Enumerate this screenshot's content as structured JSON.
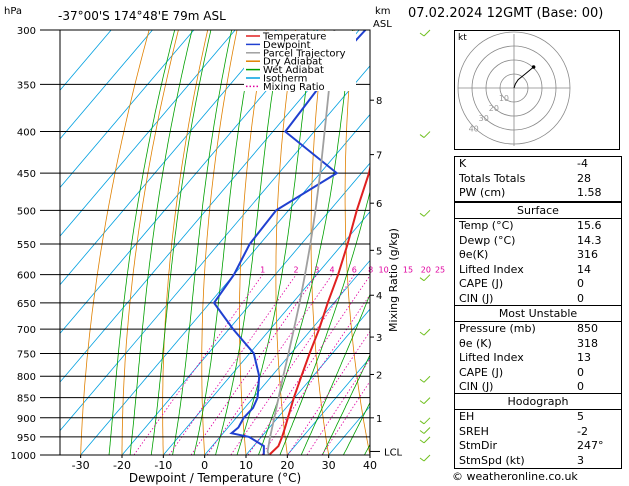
{
  "header": {
    "pressure_unit": "hPa",
    "location": "-37°00'S 174°48'E 79m ASL",
    "height_unit_km": "km",
    "height_unit_asl": "ASL",
    "date": "07.02.2024 12GMT (Base: 00)"
  },
  "chart_data": {
    "type": "line",
    "xlabel": "Dewpoint / Temperature (°C)",
    "ylabel_right": "Mixing Ratio (g/kg)",
    "y_axis_label": "hPa",
    "pressure_ticks": [
      300,
      350,
      400,
      450,
      500,
      550,
      600,
      650,
      700,
      750,
      800,
      850,
      900,
      950,
      1000
    ],
    "temp_ticks": [
      -30,
      -20,
      -10,
      0,
      10,
      20,
      30,
      40
    ],
    "xlim": [
      -35,
      40
    ],
    "ylim": [
      1000,
      300
    ],
    "km_ticks": [
      {
        "km": "8",
        "p": 366
      },
      {
        "km": "7",
        "p": 427
      },
      {
        "km": "6",
        "p": 490
      },
      {
        "km": "5",
        "p": 560
      },
      {
        "km": "4",
        "p": 636
      },
      {
        "km": "3",
        "p": 716
      },
      {
        "km": "2",
        "p": 796
      },
      {
        "km": "1",
        "p": 900
      }
    ],
    "lcl_label": "LCL",
    "lcl_pressure": 990,
    "mixing_ratio_labels": [
      "1",
      "2",
      "3",
      "4",
      "6",
      "8",
      "10",
      "15",
      "20",
      "25"
    ],
    "mixing_ratio_values": [
      1,
      2,
      3,
      4,
      6,
      8,
      10,
      15,
      20,
      25
    ],
    "legend": [
      {
        "name": "Temperature",
        "color": "#e02020",
        "style": "solid"
      },
      {
        "name": "Dewpoint",
        "color": "#2040d0",
        "style": "solid"
      },
      {
        "name": "Parcel Trajectory",
        "color": "#a0a0a0",
        "style": "solid"
      },
      {
        "name": "Dry Adiabat",
        "color": "#e08000",
        "style": "solid"
      },
      {
        "name": "Wet Adiabat",
        "color": "#00a000",
        "style": "solid"
      },
      {
        "name": "Isotherm",
        "color": "#00a0e0",
        "style": "solid"
      },
      {
        "name": "Mixing Ratio",
        "color": "#e000a0",
        "style": "dotted"
      }
    ],
    "series": [
      {
        "name": "Temperature",
        "points": [
          [
            1000,
            15.6
          ],
          [
            975,
            16
          ],
          [
            950,
            15
          ],
          [
            925,
            13.8
          ],
          [
            900,
            12.5
          ],
          [
            850,
            9.8
          ],
          [
            800,
            7.2
          ],
          [
            750,
            4.5
          ],
          [
            700,
            1.8
          ],
          [
            650,
            -1.5
          ],
          [
            600,
            -4.8
          ],
          [
            550,
            -8.8
          ],
          [
            500,
            -13.5
          ],
          [
            450,
            -18.2
          ],
          [
            400,
            -24.5
          ],
          [
            350,
            -32
          ],
          [
            325,
            -36.5
          ],
          [
            300,
            -41.5
          ]
        ]
      },
      {
        "name": "Dewpoint",
        "points": [
          [
            1000,
            14.3
          ],
          [
            975,
            12.5
          ],
          [
            950,
            7
          ],
          [
            940,
            2
          ],
          [
            925,
            2.5
          ],
          [
            900,
            1.8
          ],
          [
            875,
            2
          ],
          [
            850,
            1
          ],
          [
            800,
            -3
          ],
          [
            750,
            -9
          ],
          [
            700,
            -19
          ],
          [
            650,
            -29
          ],
          [
            600,
            -30
          ],
          [
            550,
            -32.5
          ],
          [
            500,
            -33
          ],
          [
            450,
            -26
          ],
          [
            400,
            -47
          ],
          [
            350,
            -48
          ],
          [
            325,
            -49
          ],
          [
            300,
            -48.5
          ]
        ]
      },
      {
        "name": "Parcel Trajectory",
        "points": [
          [
            1000,
            15.6
          ],
          [
            990,
            14.5
          ],
          [
            950,
            12.1
          ],
          [
            900,
            9.2
          ],
          [
            850,
            6.1
          ],
          [
            800,
            2.8
          ],
          [
            750,
            -0.6
          ],
          [
            700,
            -4.3
          ],
          [
            650,
            -8.3
          ],
          [
            600,
            -12.8
          ],
          [
            550,
            -17.8
          ],
          [
            500,
            -23.5
          ],
          [
            450,
            -30
          ],
          [
            400,
            -37.5
          ],
          [
            350,
            -46
          ],
          [
            300,
            -56
          ]
        ]
      }
    ]
  },
  "hodograph": {
    "label": "kt",
    "ring_labels": [
      "10",
      "20",
      "30",
      "40"
    ],
    "points": [
      [
        0,
        0
      ],
      [
        1,
        3
      ],
      [
        3,
        6
      ],
      [
        8,
        10
      ],
      [
        14,
        15
      ]
    ]
  },
  "wind_barbs": {
    "color": "#70c020",
    "levels": [
      300,
      400,
      500,
      600,
      700,
      800,
      850,
      900,
      925,
      950,
      1000
    ]
  },
  "indices": {
    "rows": [
      {
        "label": "K",
        "value": "-4"
      },
      {
        "label": "Totals Totals",
        "value": "28"
      },
      {
        "label": "PW (cm)",
        "value": "1.58"
      }
    ]
  },
  "surface": {
    "title": "Surface",
    "rows": [
      {
        "label": "Temp (°C)",
        "value": "15.6"
      },
      {
        "label": "Dewp (°C)",
        "value": "14.3"
      },
      {
        "label": "θe(K)",
        "value": "316"
      },
      {
        "label": "Lifted Index",
        "value": "14"
      },
      {
        "label": "CAPE (J)",
        "value": "0"
      },
      {
        "label": "CIN (J)",
        "value": "0"
      }
    ]
  },
  "most_unstable": {
    "title": "Most Unstable",
    "rows": [
      {
        "label": "Pressure (mb)",
        "value": "850"
      },
      {
        "label": "θe (K)",
        "value": "318"
      },
      {
        "label": "Lifted Index",
        "value": "13"
      },
      {
        "label": "CAPE (J)",
        "value": "0"
      },
      {
        "label": "CIN (J)",
        "value": "0"
      }
    ]
  },
  "hodograph_table": {
    "title": "Hodograph",
    "rows": [
      {
        "label": "EH",
        "value": "5"
      },
      {
        "label": "SREH",
        "value": "-2"
      },
      {
        "label": "StmDir",
        "value": "247°"
      },
      {
        "label": "StmSpd (kt)",
        "value": "3"
      }
    ]
  },
  "copyright": "© weatheronline.co.uk"
}
